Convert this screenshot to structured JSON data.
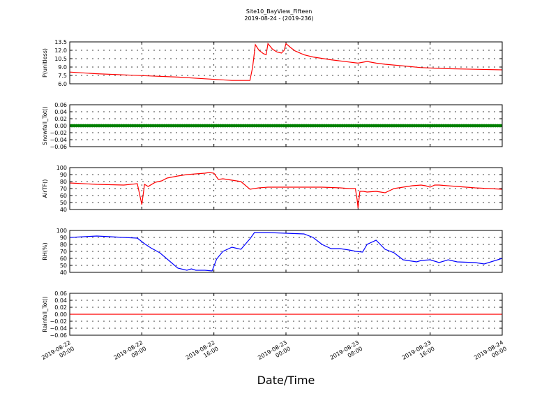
{
  "title": "Site10_BayView_Fifteen",
  "subtitle": "2019-08-24 - (2019-236)",
  "xlabel": "Date/Time",
  "chart_data": [
    {
      "type": "line",
      "ylabel": "P(unitless)",
      "ylim": [
        6.0,
        13.5
      ],
      "yticks": [
        "6.0",
        "7.5",
        "9.0",
        "10.5",
        "12.0",
        "13.5"
      ],
      "color": "#ff0000",
      "grid": true,
      "x": [
        0,
        3,
        6,
        9,
        12,
        15,
        18,
        20,
        20.3,
        20.6,
        21,
        21.5,
        21.8,
        22,
        22.5,
        23,
        23.5,
        23.8,
        24,
        24.5,
        25,
        26,
        27,
        29,
        31,
        32,
        33,
        34,
        35,
        37,
        39,
        42,
        45,
        48
      ],
      "values": [
        8.1,
        7.8,
        7.6,
        7.4,
        7.2,
        6.9,
        6.6,
        6.6,
        9.0,
        13.0,
        12.0,
        11.4,
        11.2,
        13.2,
        12.2,
        11.7,
        11.5,
        12.0,
        13.2,
        12.5,
        11.9,
        11.2,
        10.8,
        10.3,
        9.9,
        9.7,
        10.0,
        9.7,
        9.5,
        9.2,
        8.9,
        8.7,
        8.6,
        8.5
      ]
    },
    {
      "type": "scatter",
      "ylabel": "Snowfall_Tot()",
      "ylim": [
        -0.06,
        0.06
      ],
      "yticks": [
        "0.06",
        "0.04",
        "0.02",
        "0.00",
        "−0.02",
        "−0.04",
        "−0.06"
      ],
      "color": "#008000",
      "grid": true,
      "x_range": [
        0,
        48
      ],
      "x_step": 0.25,
      "constant_value": 0.0
    },
    {
      "type": "line",
      "ylabel": "AirTF()",
      "ylim": [
        40,
        100
      ],
      "yticks": [
        "40",
        "50",
        "60",
        "70",
        "80",
        "90",
        "100"
      ],
      "color": "#ff0000",
      "grid": true,
      "x": [
        0,
        3,
        6,
        7.5,
        7.8,
        8.0,
        8.3,
        8.7,
        9.5,
        10.2,
        10.8,
        12,
        13,
        14,
        15,
        15.5,
        16,
        16.5,
        17,
        17.5,
        18,
        19,
        20,
        21,
        22,
        24,
        28,
        30,
        31,
        31.7,
        31.9,
        32.0,
        32.2,
        32.6,
        33,
        34,
        35,
        36,
        38,
        39,
        39.5,
        40,
        40.5,
        41,
        43,
        45,
        48
      ],
      "values": [
        78,
        76,
        75,
        77,
        59,
        47,
        76,
        73,
        79,
        81,
        85,
        88,
        90,
        91,
        92,
        93,
        92,
        83,
        84,
        83,
        82,
        80,
        69,
        71,
        72,
        72,
        72,
        71,
        70,
        70,
        54,
        42,
        66,
        66,
        65,
        66,
        64,
        70,
        74,
        75,
        74,
        72,
        75,
        75,
        73,
        71,
        69
      ]
    },
    {
      "type": "line",
      "ylabel": "RH(%)",
      "ylim": [
        40,
        100
      ],
      "yticks": [
        "40",
        "50",
        "60",
        "70",
        "80",
        "90",
        "100"
      ],
      "color": "#0000ff",
      "grid": true,
      "x": [
        0,
        3,
        6,
        7.5,
        8.3,
        9,
        10,
        11,
        12,
        13,
        13.5,
        14,
        15,
        15.8,
        16.3,
        17,
        18,
        19,
        20,
        20.5,
        21,
        22,
        24,
        26,
        27,
        28,
        29,
        30,
        31,
        31.8,
        32.5,
        33,
        34,
        35,
        36,
        37,
        38,
        38.5,
        39,
        40,
        41,
        42,
        43,
        45,
        46,
        48
      ],
      "values": [
        90,
        92,
        90,
        89,
        81,
        75,
        68,
        57,
        46,
        43,
        45,
        43,
        43,
        42,
        59,
        70,
        76,
        73,
        88,
        97,
        97,
        97,
        96,
        95,
        90,
        80,
        74,
        74,
        72,
        70,
        69,
        80,
        86,
        73,
        68,
        58,
        56,
        55,
        57,
        58,
        54,
        58,
        55,
        54,
        52,
        60
      ]
    },
    {
      "type": "line",
      "ylabel": "Rainfall_Tot()",
      "ylim": [
        -0.06,
        0.06
      ],
      "yticks": [
        "0.06",
        "0.04",
        "0.02",
        "0.00",
        "−0.02",
        "−0.04",
        "−0.06"
      ],
      "color": "#ff0000",
      "grid": true,
      "x": [
        0,
        48
      ],
      "values": [
        0.0,
        0.0
      ]
    }
  ],
  "xaxis": {
    "range_hours": [
      0,
      48
    ],
    "tick_hours": [
      0,
      8,
      16,
      24,
      32,
      40,
      48
    ],
    "tick_labels": [
      [
        "2019-08-22",
        "00:00"
      ],
      [
        "2019-08-22",
        "08:00"
      ],
      [
        "2019-08-22",
        "16:00"
      ],
      [
        "2019-08-23",
        "00:00"
      ],
      [
        "2019-08-23",
        "08:00"
      ],
      [
        "2019-08-23",
        "16:00"
      ],
      [
        "2019-08-24",
        "00:00"
      ]
    ]
  }
}
